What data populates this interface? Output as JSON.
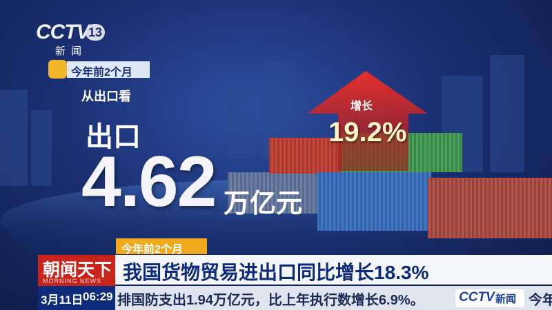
{
  "logo": {
    "brand": "CCTV",
    "channel": "13",
    "name": "新闻"
  },
  "infographic": {
    "period_tag": "今年前2个月",
    "subheading": "从出口看",
    "label": "出口",
    "amount": "4.62",
    "unit": "万亿元",
    "growth_label": "增长",
    "growth": "19.2%"
  },
  "lower_third": {
    "tag": "今年前2个月",
    "program": "朝闻天下",
    "program_en": "MORNING NEWS",
    "headline": "我国货物贸易进出口同比增长18.3%"
  },
  "ticker": {
    "date": "3月11日",
    "time": "06:29",
    "text": "排国防支出1.94万亿元，比上年执行数增长6.9%。",
    "logo": "CCTV",
    "logo_name": "新闻",
    "next": "今年"
  }
}
